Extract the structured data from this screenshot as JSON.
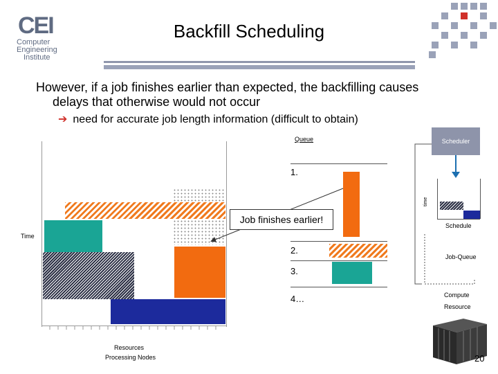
{
  "logo": {
    "mark": "CEI",
    "line1": "Computer",
    "line2": "Engineering",
    "line3": "Institute"
  },
  "title": "Backfill Scheduling",
  "body": {
    "line1": "However, if a job finishes earlier than expected, the backfilling causes",
    "line2": "delays that otherwise would not occur",
    "bullet": "need for accurate job length information (difficult to obtain)"
  },
  "diagram": {
    "callout": "Job finishes earlier!",
    "time_label": "Time",
    "resources_label": "Resources",
    "nodes_label": "Processing Nodes",
    "queue_label": "Queue",
    "queue_items": [
      "1.",
      "2.",
      "3.",
      "4…"
    ],
    "scheduler_label": "Scheduler",
    "schedule_label": "Schedule",
    "schedule_time_label": "time",
    "job_queue_label": "Job-Queue",
    "compute_label": "Compute",
    "resource_label": "Resource"
  },
  "colors": {
    "teal": "#1aa595",
    "orange": "#f26b10",
    "navy": "#1c2a9c",
    "scheduler_box": "#8e94aa"
  },
  "page_number": "20"
}
